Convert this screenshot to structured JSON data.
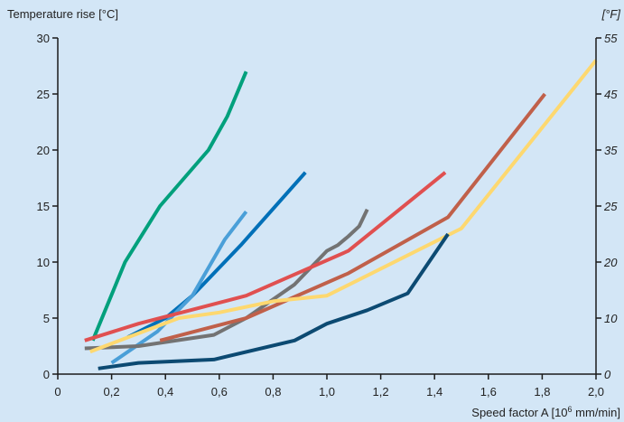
{
  "chart_data": {
    "type": "line",
    "title": "",
    "ylabel_left": "Temperature rise [°C]",
    "ylabel_right": "[°F]",
    "xlabel_main": "Speed factor A [10",
    "xlabel_sup": "6",
    "xlabel_tail": " mm/min]",
    "xlim": [
      0,
      2.0
    ],
    "ylim": [
      0,
      30
    ],
    "grid": false,
    "x_ticks": [
      0,
      0.2,
      0.4,
      0.6,
      0.8,
      1.0,
      1.2,
      1.4,
      1.6,
      1.8,
      2.0
    ],
    "x_tick_labels": [
      "0",
      "0,2",
      "0,4",
      "0,6",
      "0,8",
      "1,0",
      "1,2",
      "1,4",
      "1,6",
      "1,8",
      "2,0"
    ],
    "y_left_ticks": [
      0,
      5,
      10,
      15,
      20,
      25,
      30
    ],
    "y_left_tick_labels": [
      "0",
      "5",
      "10",
      "15",
      "20",
      "25",
      "30"
    ],
    "y_right_ticks": [
      0,
      10,
      20,
      25,
      35,
      45,
      55
    ],
    "y_right_tick_labels": [
      "0",
      "10",
      "20",
      "25",
      "35",
      "45",
      "55"
    ],
    "y_right_positions": [
      0,
      5,
      10,
      15,
      20,
      25,
      30
    ],
    "colors": {
      "background": "#d3e6f6",
      "axis": "#1a1a1a"
    },
    "series": [
      {
        "color": "#00a07c",
        "x": [
          0.13,
          0.25,
          0.38,
          0.56,
          0.63,
          0.7
        ],
        "y": [
          3.0,
          10.0,
          15.0,
          20.0,
          23.0,
          27.0
        ]
      },
      {
        "color": "#0070b8",
        "x": [
          0.26,
          0.4,
          0.5,
          0.68,
          0.92
        ],
        "y": [
          3.3,
          5.0,
          7.0,
          11.5,
          18.0
        ]
      },
      {
        "color": "#4a9fd8",
        "x": [
          0.2,
          0.37,
          0.5,
          0.62,
          0.7
        ],
        "y": [
          1.0,
          3.8,
          7.0,
          12.0,
          14.5
        ]
      },
      {
        "color": "#737373",
        "x": [
          0.1,
          0.3,
          0.58,
          0.7,
          0.88,
          1.0,
          1.04,
          1.08,
          1.12,
          1.15
        ],
        "y": [
          2.3,
          2.5,
          3.5,
          5.0,
          8.0,
          11.0,
          11.5,
          12.3,
          13.2,
          14.7
        ]
      },
      {
        "color": "#e05050",
        "x": [
          0.1,
          0.3,
          0.7,
          1.08,
          1.44
        ],
        "y": [
          3.0,
          4.5,
          7.0,
          11.0,
          18.0
        ]
      },
      {
        "color": "#c0604a",
        "x": [
          0.38,
          0.7,
          1.08,
          1.45,
          1.81
        ],
        "y": [
          3.0,
          5.0,
          9.0,
          14.0,
          25.0
        ]
      },
      {
        "color": "#fdd870",
        "x": [
          0.12,
          0.45,
          0.6,
          0.8,
          1.0,
          1.5,
          2.0
        ],
        "y": [
          2.0,
          5.0,
          5.5,
          6.5,
          7.0,
          13.0,
          28.0
        ]
      },
      {
        "color": "#0c4a72",
        "x": [
          0.15,
          0.3,
          0.58,
          0.88,
          1.0,
          1.15,
          1.3,
          1.45
        ],
        "y": [
          0.5,
          1.0,
          1.3,
          3.0,
          4.5,
          5.7,
          7.2,
          12.5
        ]
      }
    ]
  }
}
